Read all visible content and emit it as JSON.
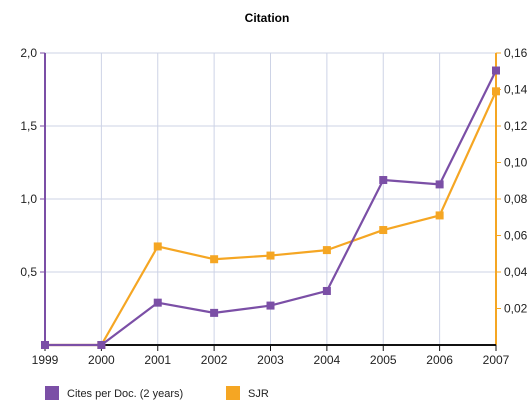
{
  "chart_data": {
    "type": "line",
    "title": "Citation",
    "xlabel": "",
    "ylabel": "",
    "categories": [
      "1999",
      "2000",
      "2001",
      "2002",
      "2003",
      "2004",
      "2005",
      "2006",
      "2007"
    ],
    "y_left": {
      "range": [
        0,
        2.0
      ],
      "ticks": [
        0.5,
        1.0,
        1.5,
        2.0
      ],
      "tick_labels": [
        "0,5",
        "1,0",
        "1,5",
        "2,0"
      ]
    },
    "y_right": {
      "range": [
        0,
        0.16
      ],
      "ticks": [
        0.02,
        0.04,
        0.06,
        0.08,
        0.1,
        0.12,
        0.14,
        0.16
      ],
      "tick_labels": [
        "0,02",
        "0,04",
        "0,06",
        "0,08",
        "0,10",
        "0,12",
        "0,14",
        "0,16"
      ]
    },
    "series": [
      {
        "name": "Cites per Doc. (2 years)",
        "axis": "left",
        "color": "#7b4fa6",
        "values": [
          0,
          0,
          0.29,
          0.22,
          0.27,
          0.37,
          1.13,
          1.1,
          1.88
        ]
      },
      {
        "name": "SJR",
        "axis": "right",
        "color": "#f5a623",
        "values": [
          0,
          0,
          0.054,
          0.047,
          0.049,
          0.052,
          0.063,
          0.071,
          0.139
        ]
      }
    ],
    "grid": true,
    "legend": "bottom-left"
  }
}
